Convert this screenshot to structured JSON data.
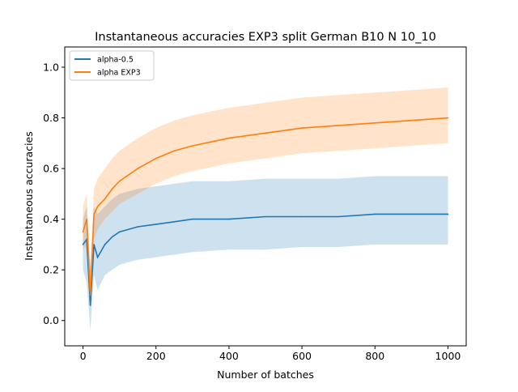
{
  "chart_data": {
    "type": "line",
    "title": "Instantaneous accuracies EXP3 split German B10 N 10_10",
    "xlabel": "Number of batches",
    "ylabel": "Instantaneous accuracies",
    "xlim": [
      -50,
      1050
    ],
    "ylim": [
      -0.1,
      1.08
    ],
    "x_ticks": [
      0,
      200,
      400,
      600,
      800,
      1000
    ],
    "x_tick_labels": [
      "0",
      "200",
      "400",
      "600",
      "800",
      "1000"
    ],
    "y_ticks": [
      0.0,
      0.2,
      0.4,
      0.6,
      0.8,
      1.0
    ],
    "y_tick_labels": [
      "0.0",
      "0.2",
      "0.4",
      "0.6",
      "0.8",
      "1.0"
    ],
    "grid": false,
    "legend_position": "top-left",
    "series": [
      {
        "name": "alpha-0.5",
        "color": "#1f77b4",
        "x": [
          0,
          10,
          20,
          30,
          40,
          60,
          80,
          100,
          150,
          200,
          250,
          300,
          400,
          500,
          600,
          700,
          800,
          900,
          1000
        ],
        "values": [
          0.3,
          0.32,
          0.06,
          0.3,
          0.25,
          0.3,
          0.33,
          0.35,
          0.37,
          0.38,
          0.39,
          0.4,
          0.4,
          0.41,
          0.41,
          0.41,
          0.42,
          0.42,
          0.42
        ],
        "band_low": [
          0.2,
          0.15,
          -0.04,
          0.18,
          0.12,
          0.18,
          0.2,
          0.22,
          0.24,
          0.25,
          0.26,
          0.27,
          0.28,
          0.28,
          0.29,
          0.29,
          0.3,
          0.3,
          0.3
        ],
        "band_high": [
          0.4,
          0.45,
          0.2,
          0.45,
          0.42,
          0.45,
          0.48,
          0.5,
          0.52,
          0.53,
          0.54,
          0.55,
          0.55,
          0.56,
          0.56,
          0.56,
          0.57,
          0.57,
          0.57
        ]
      },
      {
        "name": "alpha EXP3",
        "color": "#ff7f0e",
        "x": [
          0,
          10,
          20,
          30,
          40,
          60,
          80,
          100,
          150,
          200,
          250,
          300,
          400,
          500,
          600,
          700,
          800,
          900,
          1000
        ],
        "values": [
          0.35,
          0.4,
          0.1,
          0.42,
          0.45,
          0.48,
          0.52,
          0.55,
          0.6,
          0.64,
          0.67,
          0.69,
          0.72,
          0.74,
          0.76,
          0.77,
          0.78,
          0.79,
          0.8
        ],
        "band_low": [
          0.28,
          0.3,
          0.04,
          0.32,
          0.36,
          0.4,
          0.43,
          0.46,
          0.5,
          0.54,
          0.57,
          0.59,
          0.62,
          0.64,
          0.66,
          0.67,
          0.68,
          0.69,
          0.7
        ],
        "band_high": [
          0.45,
          0.5,
          0.2,
          0.52,
          0.56,
          0.6,
          0.64,
          0.67,
          0.72,
          0.76,
          0.79,
          0.81,
          0.84,
          0.86,
          0.88,
          0.89,
          0.9,
          0.91,
          0.92
        ]
      }
    ]
  }
}
